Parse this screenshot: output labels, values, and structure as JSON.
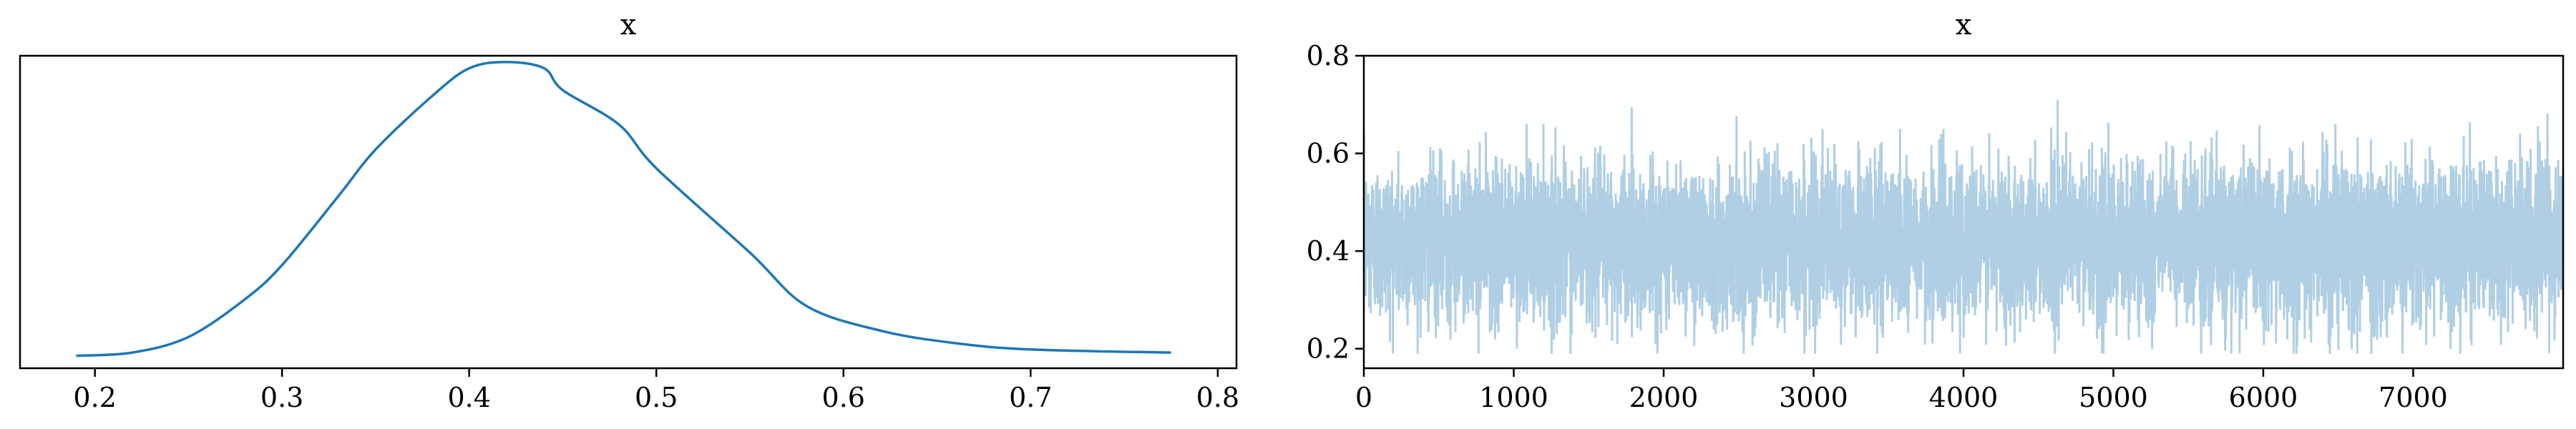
{
  "chart_data": [
    {
      "type": "line",
      "title": "x",
      "xlabel": "",
      "ylabel": "",
      "xlim": [
        0.16,
        0.81
      ],
      "ylim": [
        0,
        1
      ],
      "x_ticks": [
        0.2,
        0.3,
        0.4,
        0.5,
        0.6,
        0.7,
        0.8
      ],
      "x_tick_labels": [
        "0.2",
        "0.3",
        "0.4",
        "0.5",
        "0.6",
        "0.7",
        "0.8"
      ],
      "y_ticks_visible": false,
      "grid": false,
      "color": "#1f77b4",
      "series": [
        {
          "x": [
            0.19,
            0.22,
            0.25,
            0.28,
            0.3,
            0.33,
            0.35,
            0.38,
            0.4,
            0.42,
            0.44,
            0.45,
            0.48,
            0.5,
            0.55,
            0.58,
            0.62,
            0.66,
            0.7,
            0.775
          ],
          "y": [
            0.04,
            0.05,
            0.1,
            0.22,
            0.33,
            0.55,
            0.7,
            0.87,
            0.96,
            0.98,
            0.96,
            0.89,
            0.78,
            0.64,
            0.37,
            0.2,
            0.12,
            0.08,
            0.06,
            0.05
          ]
        }
      ]
    },
    {
      "type": "line",
      "title": "x",
      "xlabel": "",
      "ylabel": "",
      "xlim": [
        0,
        8000
      ],
      "ylim": [
        0.16,
        0.8
      ],
      "x_ticks": [
        0,
        1000,
        2000,
        3000,
        4000,
        5000,
        6000,
        7000
      ],
      "x_tick_labels": [
        "0",
        "1000",
        "2000",
        "3000",
        "4000",
        "5000",
        "6000",
        "7000"
      ],
      "y_ticks": [
        0.2,
        0.4,
        0.6,
        0.8
      ],
      "y_tick_labels": [
        "0.2",
        "0.4",
        "0.6",
        "0.8"
      ],
      "grid": false,
      "color": "#b0cfe4",
      "series": [
        {
          "n_samples": 8000,
          "mean": 0.42,
          "std": 0.08,
          "min": 0.19,
          "max": 0.78
        }
      ]
    }
  ]
}
